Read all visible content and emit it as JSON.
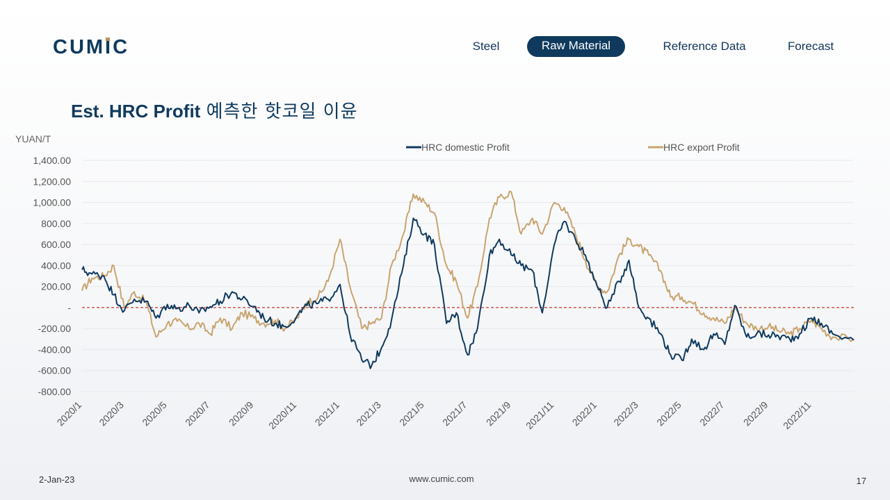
{
  "brand": {
    "logo_text": "CUMIC",
    "accent": "#0f3a5e",
    "gold": "#b8935a"
  },
  "nav": {
    "items": [
      {
        "label": "Steel",
        "active": false
      },
      {
        "label": "Raw Material",
        "active": true
      },
      {
        "label": "Reference Data",
        "active": false
      },
      {
        "label": "Forecast",
        "active": false
      }
    ]
  },
  "title": {
    "bold": "Est. HRC Profit",
    "korean": "예측한 핫코일 이윤"
  },
  "footer": {
    "date": "2-Jan-23",
    "url": "www.cumic.com",
    "page": "17"
  },
  "chart_data": {
    "type": "line",
    "title": "",
    "ylabel": "YUAN/T",
    "xlabel": "",
    "ylim": [
      -800,
      1400
    ],
    "xlim": [
      "2020-01-01",
      "2022-12-31"
    ],
    "yticks": [
      -800,
      -600,
      -400,
      -200,
      0,
      200,
      400,
      600,
      800,
      1000,
      1200,
      1400
    ],
    "ytick_labels": [
      "-800.00",
      "-600.00",
      "-400.00",
      "-200.00",
      "-",
      "200.00",
      "400.00",
      "600.00",
      "800.00",
      "1,000.00",
      "1,200.00",
      "1,400.00"
    ],
    "xtick_labels": [
      "2020/1",
      "2020/3",
      "2020/5",
      "2020/7",
      "2020/9",
      "2020/11",
      "2021/1",
      "2021/3",
      "2021/5",
      "2021/7",
      "2021/9",
      "2021/11",
      "2022/1",
      "2022/3",
      "2022/5",
      "2022/7",
      "2022/9",
      "2022/11"
    ],
    "zero_line": {
      "value": 0,
      "color": "#c0392b",
      "style": "dashed"
    },
    "legend_position": "top",
    "series": [
      {
        "name": "HRC domestic Profit",
        "color": "#0f3a5e",
        "points": [
          [
            "2020-01-01",
            360
          ],
          [
            "2020-01-15",
            320
          ],
          [
            "2020-02-01",
            300
          ],
          [
            "2020-02-15",
            120
          ],
          [
            "2020-03-01",
            -30
          ],
          [
            "2020-03-15",
            80
          ],
          [
            "2020-04-01",
            60
          ],
          [
            "2020-04-15",
            -100
          ],
          [
            "2020-05-01",
            30
          ],
          [
            "2020-05-15",
            -10
          ],
          [
            "2020-06-01",
            20
          ],
          [
            "2020-06-15",
            -50
          ],
          [
            "2020-07-01",
            10
          ],
          [
            "2020-07-15",
            60
          ],
          [
            "2020-08-01",
            150
          ],
          [
            "2020-08-15",
            80
          ],
          [
            "2020-09-01",
            10
          ],
          [
            "2020-09-15",
            -100
          ],
          [
            "2020-10-01",
            -150
          ],
          [
            "2020-10-15",
            -180
          ],
          [
            "2020-11-01",
            -80
          ],
          [
            "2020-11-15",
            20
          ],
          [
            "2020-12-01",
            40
          ],
          [
            "2020-12-15",
            80
          ],
          [
            "2021-01-01",
            220
          ],
          [
            "2021-01-15",
            -250
          ],
          [
            "2021-02-01",
            -500
          ],
          [
            "2021-02-15",
            -550
          ],
          [
            "2021-03-01",
            -380
          ],
          [
            "2021-03-15",
            -120
          ],
          [
            "2021-04-01",
            400
          ],
          [
            "2021-04-15",
            850
          ],
          [
            "2021-05-01",
            700
          ],
          [
            "2021-05-15",
            600
          ],
          [
            "2021-06-01",
            -150
          ],
          [
            "2021-06-15",
            -50
          ],
          [
            "2021-07-01",
            -450
          ],
          [
            "2021-07-15",
            -200
          ],
          [
            "2021-08-01",
            500
          ],
          [
            "2021-08-15",
            650
          ],
          [
            "2021-09-01",
            500
          ],
          [
            "2021-09-15",
            400
          ],
          [
            "2021-10-01",
            350
          ],
          [
            "2021-10-15",
            -50
          ],
          [
            "2021-11-01",
            600
          ],
          [
            "2021-11-15",
            820
          ],
          [
            "2021-12-01",
            650
          ],
          [
            "2021-12-15",
            500
          ],
          [
            "2022-01-01",
            200
          ],
          [
            "2022-01-15",
            0
          ],
          [
            "2022-02-01",
            250
          ],
          [
            "2022-02-15",
            450
          ],
          [
            "2022-03-01",
            0
          ],
          [
            "2022-03-15",
            -100
          ],
          [
            "2022-04-01",
            -250
          ],
          [
            "2022-04-15",
            -450
          ],
          [
            "2022-05-01",
            -500
          ],
          [
            "2022-05-15",
            -300
          ],
          [
            "2022-06-01",
            -400
          ],
          [
            "2022-06-15",
            -250
          ],
          [
            "2022-07-01",
            -350
          ],
          [
            "2022-07-15",
            20
          ],
          [
            "2022-08-01",
            -280
          ],
          [
            "2022-08-15",
            -250
          ],
          [
            "2022-09-01",
            -260
          ],
          [
            "2022-09-15",
            -270
          ],
          [
            "2022-10-01",
            -300
          ],
          [
            "2022-10-15",
            -250
          ],
          [
            "2022-11-01",
            -100
          ],
          [
            "2022-11-15",
            -150
          ],
          [
            "2022-12-01",
            -250
          ],
          [
            "2022-12-31",
            -310
          ]
        ]
      },
      {
        "name": "HRC export Profit",
        "color": "#c9a46e",
        "points": [
          [
            "2020-01-01",
            160
          ],
          [
            "2020-01-15",
            280
          ],
          [
            "2020-02-01",
            300
          ],
          [
            "2020-02-15",
            400
          ],
          [
            "2020-03-01",
            0
          ],
          [
            "2020-03-15",
            150
          ],
          [
            "2020-04-01",
            50
          ],
          [
            "2020-04-15",
            -280
          ],
          [
            "2020-05-01",
            -150
          ],
          [
            "2020-05-15",
            -130
          ],
          [
            "2020-06-01",
            -200
          ],
          [
            "2020-06-15",
            -150
          ],
          [
            "2020-07-01",
            -250
          ],
          [
            "2020-07-15",
            -100
          ],
          [
            "2020-08-01",
            -200
          ],
          [
            "2020-08-15",
            -50
          ],
          [
            "2020-09-01",
            -100
          ],
          [
            "2020-09-15",
            -150
          ],
          [
            "2020-10-01",
            -120
          ],
          [
            "2020-10-15",
            -200
          ],
          [
            "2020-11-01",
            -100
          ],
          [
            "2020-11-15",
            50
          ],
          [
            "2020-12-01",
            100
          ],
          [
            "2020-12-15",
            250
          ],
          [
            "2021-01-01",
            650
          ],
          [
            "2021-01-15",
            200
          ],
          [
            "2021-02-01",
            -200
          ],
          [
            "2021-02-15",
            -150
          ],
          [
            "2021-03-01",
            -100
          ],
          [
            "2021-03-15",
            400
          ],
          [
            "2021-04-01",
            700
          ],
          [
            "2021-04-15",
            1080
          ],
          [
            "2021-05-01",
            1000
          ],
          [
            "2021-05-15",
            900
          ],
          [
            "2021-06-01",
            400
          ],
          [
            "2021-06-15",
            250
          ],
          [
            "2021-07-01",
            -100
          ],
          [
            "2021-07-15",
            200
          ],
          [
            "2021-08-01",
            850
          ],
          [
            "2021-08-15",
            1050
          ],
          [
            "2021-09-01",
            1100
          ],
          [
            "2021-09-15",
            700
          ],
          [
            "2021-10-01",
            850
          ],
          [
            "2021-10-15",
            700
          ],
          [
            "2021-11-01",
            1000
          ],
          [
            "2021-11-15",
            950
          ],
          [
            "2021-12-01",
            700
          ],
          [
            "2021-12-15",
            450
          ],
          [
            "2022-01-01",
            200
          ],
          [
            "2022-01-15",
            150
          ],
          [
            "2022-02-01",
            500
          ],
          [
            "2022-02-15",
            650
          ],
          [
            "2022-03-01",
            580
          ],
          [
            "2022-03-15",
            500
          ],
          [
            "2022-04-01",
            350
          ],
          [
            "2022-04-15",
            100
          ],
          [
            "2022-05-01",
            100
          ],
          [
            "2022-05-15",
            50
          ],
          [
            "2022-06-01",
            -50
          ],
          [
            "2022-06-15",
            -100
          ],
          [
            "2022-07-01",
            -150
          ],
          [
            "2022-07-15",
            0
          ],
          [
            "2022-08-01",
            -150
          ],
          [
            "2022-08-15",
            -200
          ],
          [
            "2022-09-01",
            -180
          ],
          [
            "2022-09-15",
            -220
          ],
          [
            "2022-10-01",
            -250
          ],
          [
            "2022-10-15",
            -200
          ],
          [
            "2022-11-01",
            -120
          ],
          [
            "2022-11-15",
            -200
          ],
          [
            "2022-12-01",
            -280
          ],
          [
            "2022-12-31",
            -300
          ]
        ]
      }
    ]
  }
}
